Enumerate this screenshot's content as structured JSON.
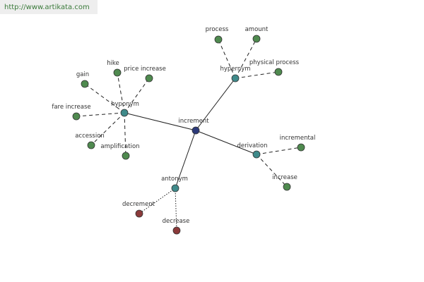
{
  "header": {
    "url": "http://www.artikata.com"
  },
  "nodes": [
    {
      "label": "increment"
    },
    {
      "label": "hypernym"
    },
    {
      "label": "hyponym"
    },
    {
      "label": "derivation"
    },
    {
      "label": "antonym"
    },
    {
      "label": "process"
    },
    {
      "label": "amount"
    },
    {
      "label": "physical process"
    },
    {
      "label": "hike"
    },
    {
      "label": "price increase"
    },
    {
      "label": "gain"
    },
    {
      "label": "fare increase"
    },
    {
      "label": "accession"
    },
    {
      "label": "amplification"
    },
    {
      "label": "incremental"
    },
    {
      "label": "increase"
    },
    {
      "label": "decrement"
    },
    {
      "label": "decrease"
    }
  ]
}
